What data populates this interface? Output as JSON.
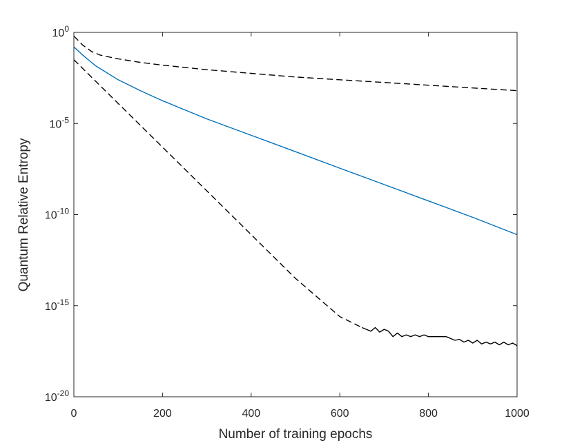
{
  "chart_data": {
    "type": "line",
    "title": "",
    "xlabel": "Number of training epochs",
    "ylabel": "Quantum Relative Entropy",
    "xlim": [
      0,
      1000
    ],
    "ylim_log10": [
      -20,
      0
    ],
    "yscale": "log",
    "grid": false,
    "x_ticks": [
      {
        "value": 0,
        "label": "0"
      },
      {
        "value": 200,
        "label": "200"
      },
      {
        "value": 400,
        "label": "400"
      },
      {
        "value": 600,
        "label": "600"
      },
      {
        "value": 800,
        "label": "800"
      },
      {
        "value": 1000,
        "label": "1000"
      }
    ],
    "y_ticks": [
      {
        "value_log10": 0,
        "base": "10",
        "exp": "0"
      },
      {
        "value_log10": -5,
        "base": "10",
        "exp": "-5"
      },
      {
        "value_log10": -10,
        "base": "10",
        "exp": "-10"
      },
      {
        "value_log10": -15,
        "base": "10",
        "exp": "-15"
      },
      {
        "value_log10": -20,
        "base": "10",
        "exp": "-20"
      }
    ],
    "series": [
      {
        "color": "#000000",
        "style": "dashed",
        "x": [
          0,
          20,
          40,
          60,
          100,
          150,
          200,
          300,
          400,
          500,
          600,
          700,
          800,
          900,
          1000
        ],
        "log10_y": [
          -0.2,
          -0.7,
          -1.05,
          -1.25,
          -1.45,
          -1.65,
          -1.8,
          -2.05,
          -2.25,
          -2.45,
          -2.6,
          -2.75,
          -2.9,
          -3.05,
          -3.2
        ]
      },
      {
        "color": "#0072bd",
        "style": "solid",
        "x": [
          0,
          25,
          50,
          100,
          150,
          200,
          300,
          400,
          500,
          600,
          700,
          800,
          900,
          1000
        ],
        "log10_y": [
          -0.8,
          -1.35,
          -1.85,
          -2.6,
          -3.2,
          -3.75,
          -4.75,
          -5.65,
          -6.55,
          -7.45,
          -8.35,
          -9.25,
          -10.15,
          -11.1
        ]
      },
      {
        "color": "#000000",
        "style": "dashed",
        "x": [
          0,
          100,
          200,
          300,
          400,
          500,
          600,
          650
        ],
        "log10_y": [
          -1.5,
          -3.9,
          -6.3,
          -8.7,
          -11.1,
          -13.5,
          -15.6,
          -16.2
        ]
      },
      {
        "color": "#000000",
        "style": "solid",
        "x": [
          650,
          660,
          670,
          680,
          690,
          700,
          710,
          720,
          730,
          740,
          750,
          760,
          770,
          780,
          790,
          800,
          810,
          820,
          830,
          840,
          850,
          860,
          870,
          880,
          890,
          900,
          910,
          920,
          930,
          940,
          950,
          960,
          970,
          980,
          990,
          1000
        ],
        "log10_y": [
          -16.2,
          -16.3,
          -16.4,
          -16.2,
          -16.45,
          -16.3,
          -16.4,
          -16.7,
          -16.5,
          -16.7,
          -16.6,
          -16.7,
          -16.6,
          -16.7,
          -16.6,
          -16.7,
          -16.7,
          -16.7,
          -16.7,
          -16.7,
          -16.8,
          -16.9,
          -16.85,
          -17.0,
          -16.9,
          -17.05,
          -16.9,
          -17.1,
          -17.0,
          -17.1,
          -17.0,
          -17.15,
          -17.0,
          -17.15,
          -17.05,
          -17.2
        ]
      }
    ]
  }
}
